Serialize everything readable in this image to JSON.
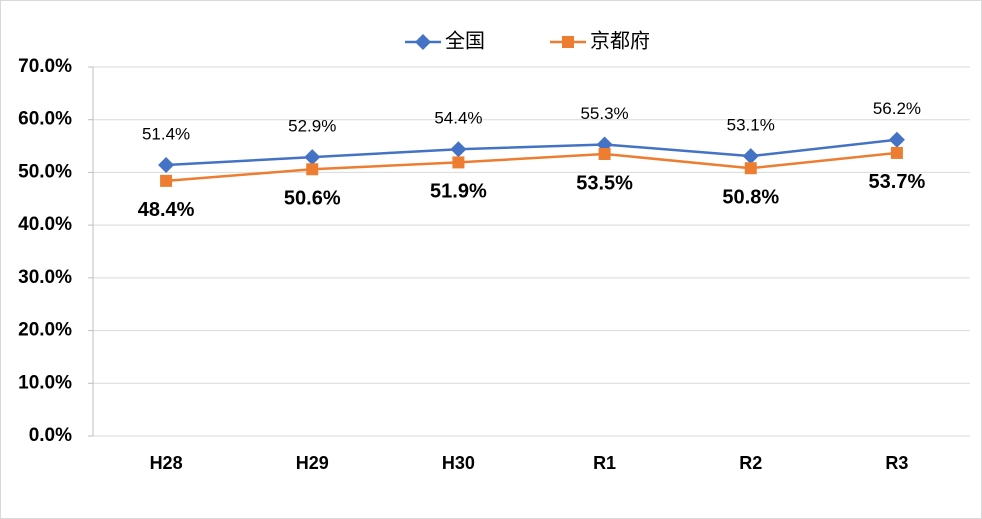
{
  "chart_data": {
    "type": "line",
    "categories": [
      "H28",
      "H29",
      "H30",
      "R1",
      "R2",
      "R3"
    ],
    "series": [
      {
        "name": "全国",
        "color": "#4472c4",
        "marker": "diamond",
        "values": [
          51.4,
          52.9,
          54.4,
          55.3,
          53.1,
          56.2
        ],
        "value_labels": [
          "51.4%",
          "52.9%",
          "54.4%",
          "55.3%",
          "53.1%",
          "56.2%"
        ]
      },
      {
        "name": "京都府",
        "color": "#ed7d31",
        "marker": "square",
        "values": [
          48.4,
          50.6,
          51.9,
          53.5,
          50.8,
          53.7
        ],
        "value_labels": [
          "48.4%",
          "50.6%",
          "51.9%",
          "53.5%",
          "50.8%",
          "53.7%"
        ]
      }
    ],
    "ylim": [
      0,
      70
    ],
    "yticks": [
      {
        "value": 0,
        "label": "0.0%"
      },
      {
        "value": 10,
        "label": "10.0%"
      },
      {
        "value": 20,
        "label": "20.0%"
      },
      {
        "value": 30,
        "label": "30.0%"
      },
      {
        "value": 40,
        "label": "40.0%"
      },
      {
        "value": 50,
        "label": "50.0%"
      },
      {
        "value": 60,
        "label": "60.0%"
      },
      {
        "value": 70,
        "label": "70.0%"
      }
    ],
    "grid": true,
    "legend": "top"
  }
}
